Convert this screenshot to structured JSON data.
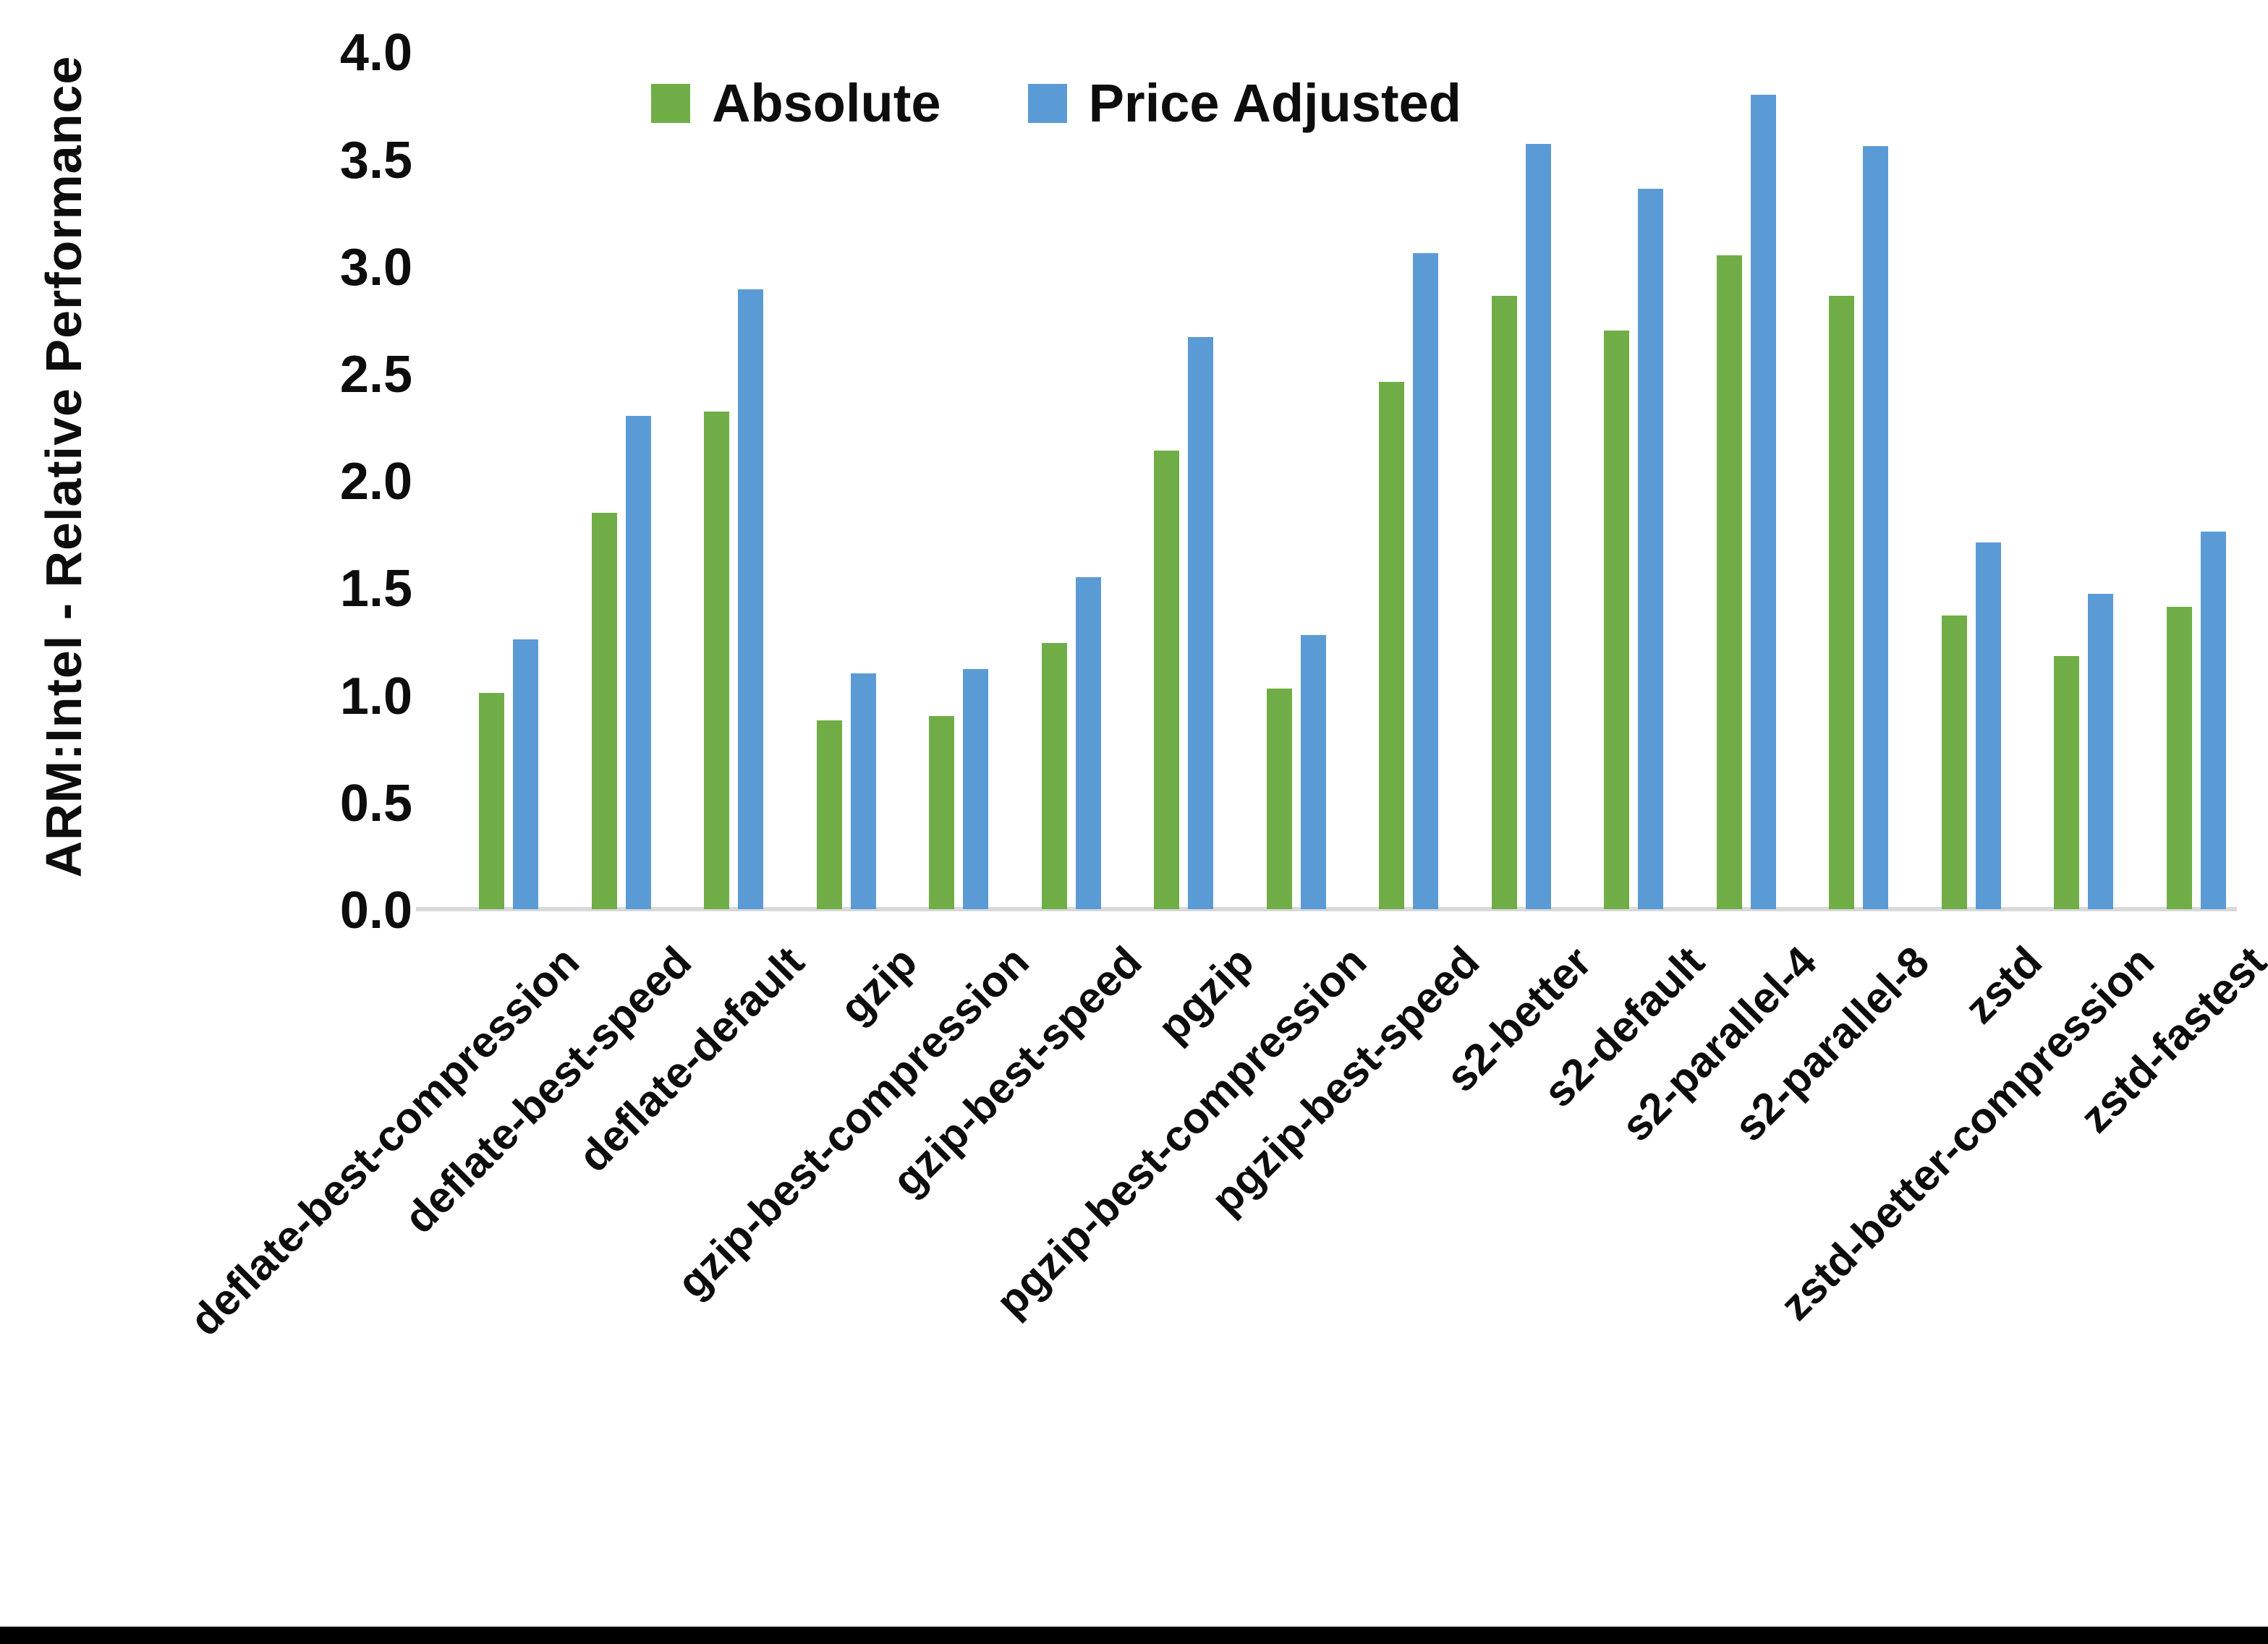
{
  "chart_data": {
    "type": "bar",
    "title": "",
    "xlabel": "",
    "ylabel": "ARM:Intel - Relative Performance",
    "ylim": [
      0.0,
      4.0
    ],
    "ytick_step": 0.5,
    "ytick_decimals": 1,
    "grid": false,
    "legend_position": "top-center",
    "background": "#ffffff",
    "axis_line_color": "#d9d9d9",
    "categories": [
      "deflate-best-compression",
      "deflate-best-speed",
      "deflate-default",
      "gzip",
      "gzip-best-compression",
      "gzip-best-speed",
      "pgzip",
      "pgzip-best-compression",
      "pgzip-best-speed",
      "s2-better",
      "s2-default",
      "s2-parallel-4",
      "s2-parallel-8",
      "zstd",
      "zstd-better-compression",
      "zstd-fastest"
    ],
    "series": [
      {
        "name": "Absolute",
        "color": "#70AD47",
        "values": [
          1.01,
          1.85,
          2.32,
          0.88,
          0.9,
          1.24,
          2.14,
          1.03,
          2.46,
          2.86,
          2.7,
          3.05,
          2.86,
          1.37,
          1.18,
          1.41
        ]
      },
      {
        "name": "Price Adjusted",
        "color": "#5B9BD5",
        "values": [
          1.26,
          2.3,
          2.89,
          1.1,
          1.12,
          1.55,
          2.67,
          1.28,
          3.06,
          3.57,
          3.36,
          3.8,
          3.56,
          1.71,
          1.47,
          1.76
        ]
      }
    ]
  }
}
